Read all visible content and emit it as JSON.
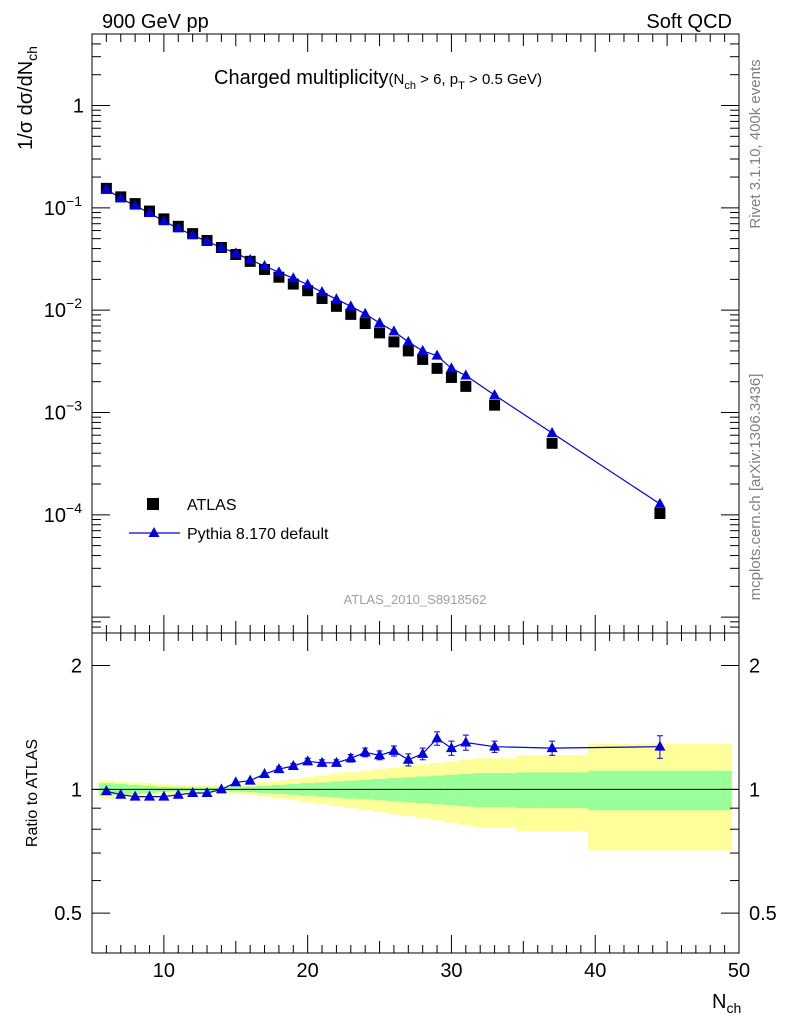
{
  "header": {
    "left": "900 GeV pp",
    "right": "Soft QCD"
  },
  "side_labels": {
    "top": "Rivet 3.1.10,  400k events",
    "bottom": "mcplots.cern.ch [arXiv:1306.3436]"
  },
  "watermark": "ATLAS_2010_S8918562",
  "chart_data": [
    {
      "type": "scatter",
      "panel": "main",
      "title": "Charged multiplicity",
      "title_suffix": {
        "n": "N",
        "n_sub": "ch",
        "mid": " > 6, p",
        "p_sub": "T",
        "tail": " > 0.5 GeV)"
      },
      "ylabel": {
        "main": "1/σ dσ/dN",
        "sub": "ch"
      },
      "xlim": [
        5,
        50
      ],
      "ylim": [
        7e-06,
        5
      ],
      "yscale": "log",
      "yticks": [
        {
          "v": 1,
          "base": "1",
          "exp": ""
        },
        {
          "v": 0.1,
          "base": "10",
          "exp": "−1"
        },
        {
          "v": 0.01,
          "base": "10",
          "exp": "−2"
        },
        {
          "v": 0.001,
          "base": "10",
          "exp": "−3"
        },
        {
          "v": 0.0001,
          "base": "10",
          "exp": "−4"
        }
      ],
      "legend": {
        "position": "bottom-left"
      },
      "series": [
        {
          "name": "ATLAS",
          "marker": "square",
          "color": "#000000",
          "x": [
            6,
            7,
            8,
            9,
            10,
            11,
            12,
            13,
            14,
            15,
            16,
            17,
            18,
            19,
            20,
            21,
            22,
            23,
            24,
            25,
            26,
            27,
            28,
            29,
            30,
            31,
            33,
            37,
            44.5
          ],
          "y": [
            0.155,
            0.128,
            0.11,
            0.093,
            0.078,
            0.066,
            0.056,
            0.048,
            0.041,
            0.035,
            0.03,
            0.025,
            0.021,
            0.018,
            0.0155,
            0.013,
            0.0109,
            0.0091,
            0.0074,
            0.006,
            0.0049,
            0.004,
            0.0033,
            0.0027,
            0.0022,
            0.0018,
            0.00118,
            0.0005,
            0.000103
          ]
        },
        {
          "name": "Pythia 8.170 default",
          "marker": "triangle",
          "color": "#0000e0",
          "x": [
            6,
            7,
            8,
            9,
            10,
            11,
            12,
            13,
            14,
            15,
            16,
            17,
            18,
            19,
            20,
            21,
            22,
            23,
            24,
            25,
            26,
            27,
            28,
            29,
            30,
            31,
            33,
            37,
            44.5
          ],
          "y": [
            0.152,
            0.124,
            0.105,
            0.089,
            0.074,
            0.063,
            0.054,
            0.047,
            0.041,
            0.036,
            0.031,
            0.027,
            0.0235,
            0.0205,
            0.0178,
            0.015,
            0.0128,
            0.0109,
            0.0092,
            0.0075,
            0.0062,
            0.0049,
            0.004,
            0.0036,
            0.0027,
            0.0023,
            0.00148,
            0.00063,
            0.000128
          ]
        }
      ]
    },
    {
      "type": "line",
      "panel": "ratio",
      "ylabel": "Ratio to ATLAS",
      "xlabel": {
        "main": "N",
        "sub": "ch"
      },
      "xlim": [
        5,
        50
      ],
      "ylim": [
        0.4,
        2.4
      ],
      "yscale": "log",
      "xticks": [
        10,
        20,
        30,
        40,
        50
      ],
      "yticks": [
        {
          "v": 0.5,
          "label": "0.5"
        },
        {
          "v": 1,
          "label": "1"
        },
        {
          "v": 2,
          "label": "2"
        }
      ],
      "reference": 1,
      "bands": {
        "edges": [
          5.5,
          6.5,
          7.5,
          8.5,
          9.5,
          10.5,
          11.5,
          12.5,
          13.5,
          14.5,
          15.5,
          16.5,
          17.5,
          18.5,
          19.5,
          20.5,
          21.5,
          22.5,
          23.5,
          24.5,
          25.5,
          26.5,
          27.5,
          28.5,
          29.5,
          30.5,
          31.5,
          34.5,
          39.5,
          49.5
        ],
        "green": [
          0.035,
          0.03,
          0.025,
          0.02,
          0.015,
          0.012,
          0.01,
          0.01,
          0.01,
          0.012,
          0.015,
          0.02,
          0.025,
          0.03,
          0.035,
          0.04,
          0.045,
          0.05,
          0.055,
          0.06,
          0.065,
          0.07,
          0.075,
          0.08,
          0.085,
          0.09,
          0.095,
          0.1,
          0.11
        ],
        "yellow": [
          0.05,
          0.045,
          0.04,
          0.035,
          0.03,
          0.025,
          0.02,
          0.02,
          0.02,
          0.025,
          0.03,
          0.04,
          0.05,
          0.06,
          0.07,
          0.08,
          0.09,
          0.1,
          0.11,
          0.12,
          0.13,
          0.14,
          0.15,
          0.16,
          0.17,
          0.18,
          0.19,
          0.21,
          0.29
        ],
        "yellow_color": "#ffff99",
        "green_color": "#99ff99"
      },
      "series": [
        {
          "name": "Pythia 8.170 default",
          "color": "#0000e0",
          "x": [
            6,
            7,
            8,
            9,
            10,
            11,
            12,
            13,
            14,
            15,
            16,
            17,
            18,
            19,
            20,
            21,
            22,
            23,
            24,
            25,
            26,
            27,
            28,
            29,
            30,
            31,
            33,
            37,
            44.5
          ],
          "y": [
            0.99,
            0.97,
            0.96,
            0.96,
            0.96,
            0.97,
            0.98,
            0.98,
            1.0,
            1.04,
            1.05,
            1.09,
            1.12,
            1.14,
            1.17,
            1.16,
            1.16,
            1.19,
            1.23,
            1.21,
            1.24,
            1.18,
            1.22,
            1.33,
            1.26,
            1.3,
            1.27,
            1.26,
            1.27
          ],
          "err": [
            0.01,
            0.01,
            0.01,
            0.01,
            0.01,
            0.01,
            0.01,
            0.01,
            0.01,
            0.01,
            0.01,
            0.01,
            0.015,
            0.015,
            0.02,
            0.02,
            0.02,
            0.025,
            0.03,
            0.03,
            0.035,
            0.04,
            0.04,
            0.05,
            0.05,
            0.055,
            0.04,
            0.05,
            0.08
          ]
        }
      ]
    }
  ]
}
